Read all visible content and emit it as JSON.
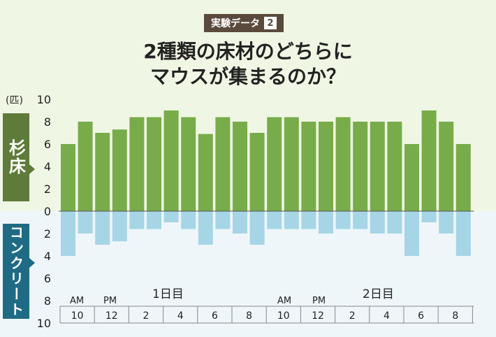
{
  "header": {
    "badge_text": "実験データ",
    "badge_number": "2"
  },
  "title_line1": "2種類の床材のどちらに",
  "title_line2": "マウスが集まるのか？",
  "unit_label": "(匹)",
  "side_labels": {
    "wood": "杉床",
    "concrete": "コンクリート"
  },
  "colors": {
    "wood": "#78ac4a",
    "concrete": "#a6d5e6",
    "wood_label_bg": "#5e7b3a",
    "concrete_label_bg": "#1f6b86"
  },
  "day_labels": {
    "day1": "1日目",
    "day2": "2日目"
  },
  "time_labels": {
    "am1": "AM",
    "pm1": "PM",
    "am2": "AM",
    "pm2": "PM"
  },
  "chart_data": {
    "type": "bar",
    "ylim": [
      -10,
      10
    ],
    "yticks_top": [
      "10",
      "8",
      "6",
      "4",
      "2",
      "0"
    ],
    "yticks_bottom": [
      "2",
      "4",
      "6",
      "8",
      "10"
    ],
    "x_tick_labels": [
      "10",
      "12",
      "2",
      "4",
      "6",
      "8",
      "10",
      "12",
      "2",
      "4",
      "6",
      "8"
    ],
    "series": [
      {
        "name": "杉床",
        "values": [
          6,
          8,
          7,
          7.3,
          8.4,
          8.4,
          9,
          8.4,
          6.9,
          8.4,
          8,
          7,
          8.4,
          8.4,
          8,
          8,
          8.4,
          8,
          8,
          8,
          6,
          9,
          8,
          6
        ]
      },
      {
        "name": "コンクリート",
        "values": [
          4,
          2,
          3,
          2.7,
          1.6,
          1.6,
          1,
          1.6,
          3,
          1.6,
          2,
          3,
          1.6,
          1.6,
          1.6,
          2,
          1.6,
          1.6,
          2,
          2,
          4,
          1,
          2,
          4
        ]
      }
    ]
  }
}
